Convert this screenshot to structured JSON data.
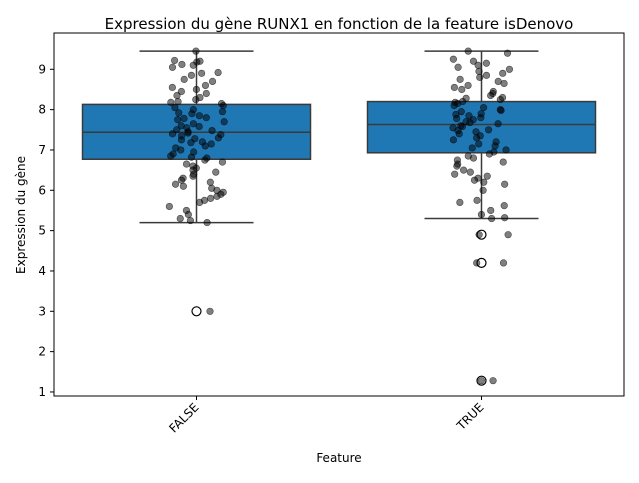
{
  "chart_data": {
    "type": "box",
    "title": "Expression du gène RUNX1 en fonction de la feature isDenovo",
    "xlabel": "Feature",
    "ylabel": "Expression du gène",
    "categories": [
      "FALSE",
      "TRUE"
    ],
    "ylim": [
      0.9,
      9.9
    ],
    "yticks": [
      1,
      2,
      3,
      4,
      5,
      6,
      7,
      8,
      9
    ],
    "grid": false,
    "legend": "none",
    "box_color": "#1f77b4",
    "line_color": "#3a3a3a",
    "point_color": "#000000",
    "boxes": [
      {
        "category": "FALSE",
        "whisker_low": 5.2,
        "q1": 6.77,
        "median": 7.44,
        "q3": 8.13,
        "whisker_high": 9.45,
        "outliers": [
          3.0
        ]
      },
      {
        "category": "TRUE",
        "whisker_low": 5.3,
        "q1": 6.93,
        "median": 7.63,
        "q3": 8.2,
        "whisker_high": 9.45,
        "outliers": [
          4.9,
          4.2,
          1.28
        ]
      }
    ],
    "strip_points": [
      {
        "category": "FALSE",
        "y": [
          9.45,
          9.2,
          9.22,
          9.12,
          9.1,
          9.18,
          9.05,
          8.92,
          8.9,
          8.85,
          8.75,
          8.7,
          8.6,
          8.55,
          8.5,
          8.45,
          8.4,
          8.35,
          8.3,
          8.25,
          8.2,
          8.18,
          8.15,
          8.1,
          8.05,
          8.0,
          7.95,
          7.92,
          7.9,
          7.85,
          7.8,
          7.78,
          7.75,
          7.7,
          7.65,
          7.6,
          7.58,
          7.55,
          7.5,
          7.48,
          7.45,
          7.42,
          7.4,
          7.38,
          7.35,
          7.3,
          7.28,
          7.25,
          7.2,
          7.18,
          7.15,
          7.1,
          7.05,
          7.0,
          6.95,
          6.9,
          6.85,
          6.82,
          6.8,
          6.75,
          6.7,
          6.65,
          6.6,
          6.55,
          6.5,
          6.45,
          6.4,
          6.35,
          6.3,
          6.25,
          6.2,
          6.15,
          6.1,
          6.05,
          6.0,
          5.95,
          5.9,
          5.85,
          5.8,
          5.75,
          5.7,
          5.6,
          5.5,
          5.4,
          5.3,
          5.25,
          5.2,
          3.0
        ]
      },
      {
        "category": "TRUE",
        "y": [
          9.45,
          9.4,
          9.25,
          9.2,
          9.15,
          9.1,
          9.05,
          9.0,
          8.95,
          8.9,
          8.85,
          8.8,
          8.75,
          8.7,
          8.65,
          8.6,
          8.55,
          8.5,
          8.45,
          8.4,
          8.35,
          8.3,
          8.28,
          8.25,
          8.2,
          8.18,
          8.15,
          8.1,
          8.05,
          8.0,
          7.98,
          7.95,
          7.9,
          7.88,
          7.85,
          7.8,
          7.78,
          7.75,
          7.7,
          7.68,
          7.65,
          7.6,
          7.58,
          7.55,
          7.5,
          7.48,
          7.45,
          7.4,
          7.35,
          7.3,
          7.25,
          7.2,
          7.15,
          7.1,
          7.05,
          7.0,
          6.95,
          6.9,
          6.85,
          6.8,
          6.75,
          6.7,
          6.65,
          6.6,
          6.5,
          6.45,
          6.4,
          6.35,
          6.3,
          6.25,
          6.2,
          6.15,
          6.0,
          5.75,
          5.7,
          5.62,
          5.5,
          5.4,
          5.32,
          5.3,
          4.9,
          4.9,
          4.2,
          4.2,
          1.28,
          1.28
        ]
      }
    ]
  }
}
